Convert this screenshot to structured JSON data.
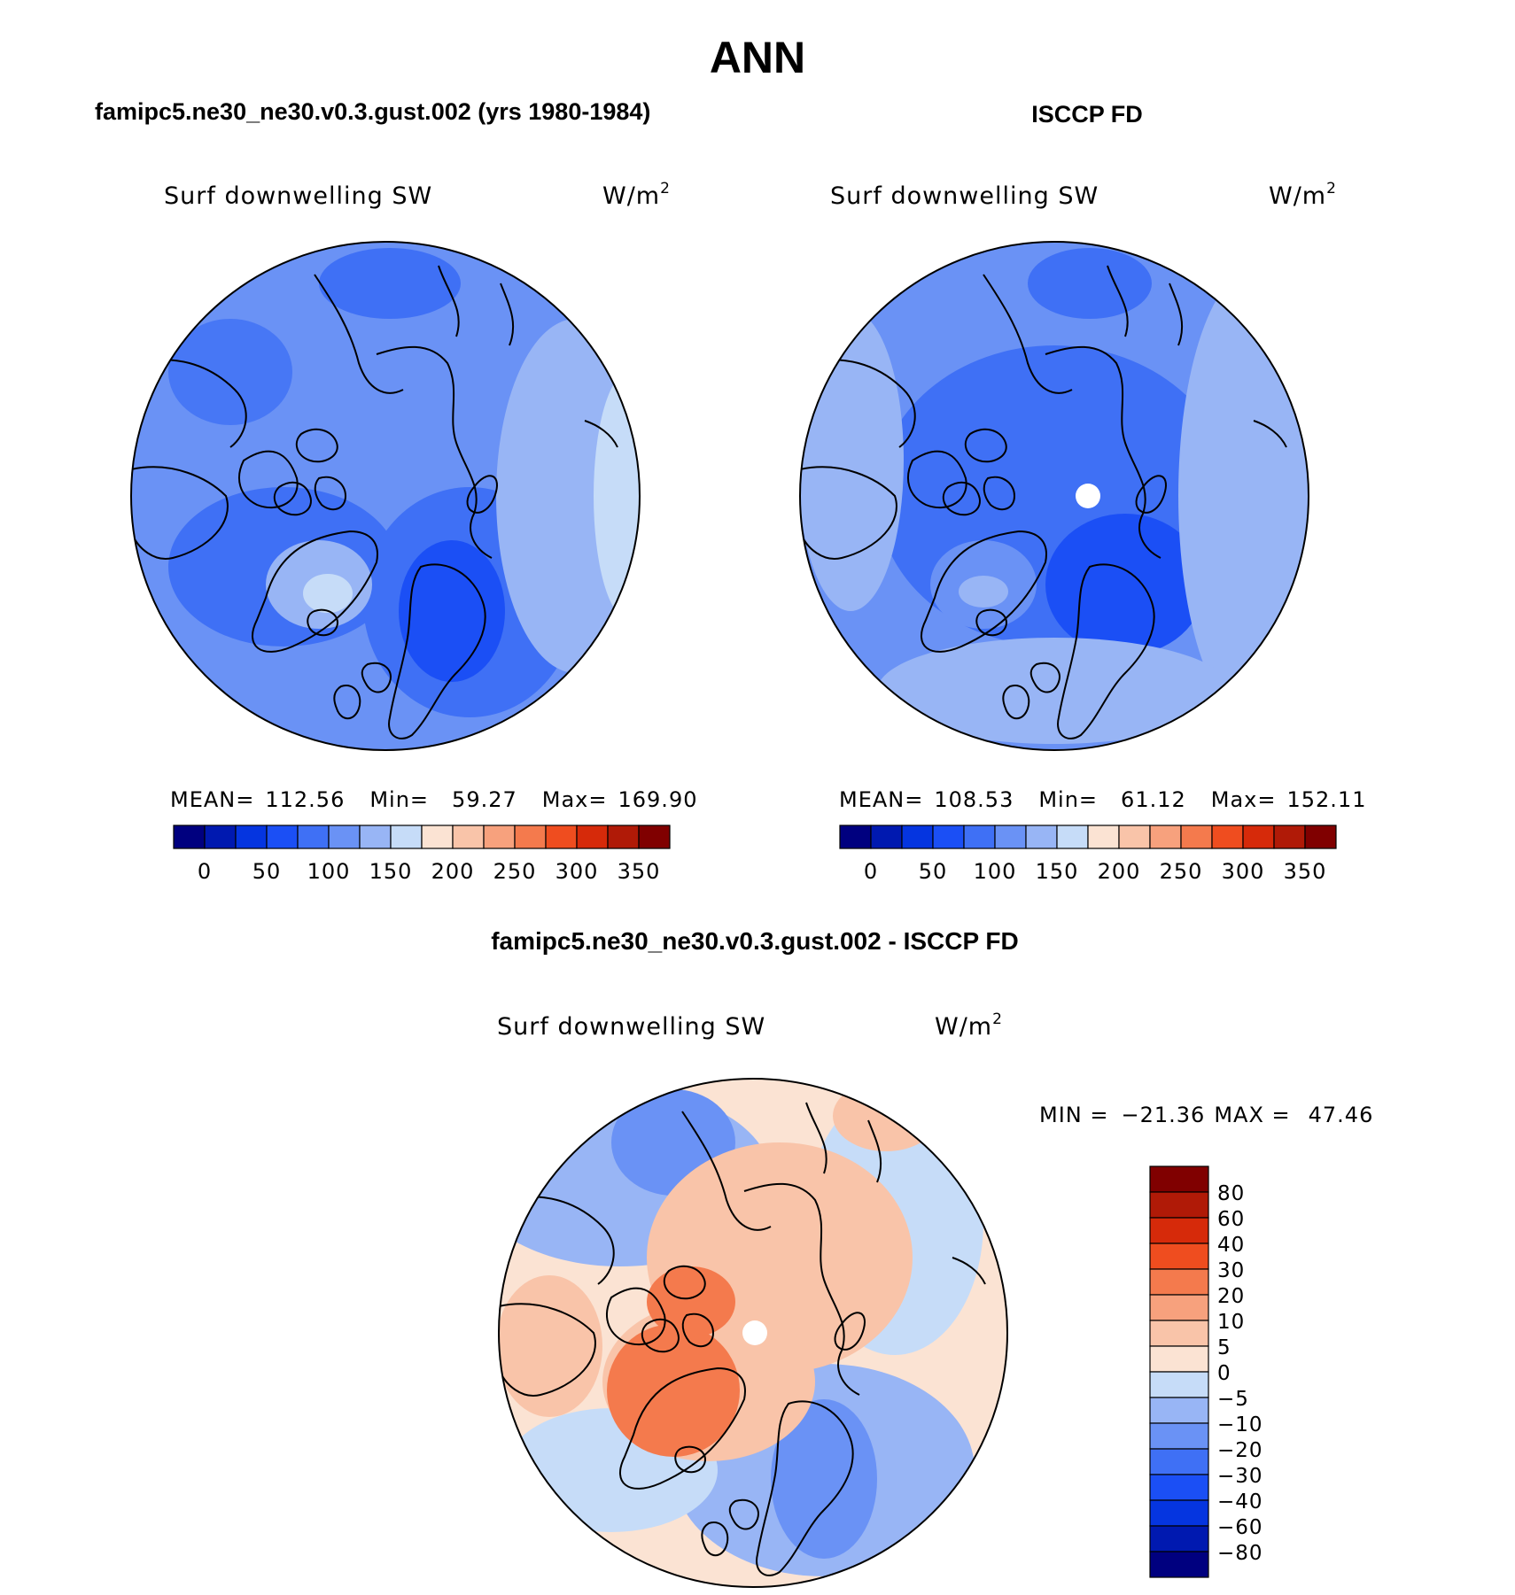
{
  "title": "ANN",
  "colors": {
    "abs_palette": [
      "#00007f",
      "#0019b0",
      "#0535e0",
      "#1b4ff5",
      "#3f70f5",
      "#6a92f5",
      "#98b5f5",
      "#c6dcf8",
      "#fbe3d3",
      "#f9c4a9",
      "#f7a17d",
      "#f47a4d",
      "#ef4d1f",
      "#d62a0a",
      "#b01a07",
      "#800000"
    ],
    "diff_palette": [
      "#00007f",
      "#0019b0",
      "#0535e0",
      "#1b4ff5",
      "#3f70f5",
      "#6a92f5",
      "#98b5f5",
      "#c6dcf8",
      "#fbe3d3",
      "#f9c4a9",
      "#f7a17d",
      "#f47a4d",
      "#ef4d1f",
      "#d62a0a",
      "#b01a07",
      "#800000"
    ]
  },
  "panels": [
    {
      "id": "model",
      "heading": "famipc5.ne30_ne30.v0.3.gust.002 (yrs 1980-1984)",
      "variable": "Surf downwelling SW",
      "units": "W/m",
      "units_sup": "2",
      "stats": {
        "mean_label": "MEAN=",
        "mean": "112.56",
        "min_label": "Min=",
        "min": "59.27",
        "max_label": "Max=",
        "max": "169.90"
      },
      "colorbar_ticks": [
        "0",
        "50",
        "100",
        "150",
        "200",
        "250",
        "300",
        "350"
      ]
    },
    {
      "id": "obs",
      "heading": "ISCCP FD",
      "variable": "Surf downwelling SW",
      "units": "W/m",
      "units_sup": "2",
      "stats": {
        "mean_label": "MEAN=",
        "mean": "108.53",
        "min_label": "Min=",
        "min": "61.12",
        "max_label": "Max=",
        "max": "152.11"
      },
      "colorbar_ticks": [
        "0",
        "50",
        "100",
        "150",
        "200",
        "250",
        "300",
        "350"
      ]
    },
    {
      "id": "diff",
      "heading": "famipc5.ne30_ne30.v0.3.gust.002 - ISCCP FD",
      "variable": "Surf downwelling SW",
      "units": "W/m",
      "units_sup": "2",
      "stats": {
        "min_label": "MIN =",
        "min": "−21.36",
        "max_label": "MAX =",
        "max": "47.46"
      },
      "colorbar_ticks": [
        "80",
        "60",
        "40",
        "30",
        "20",
        "10",
        "5",
        "0",
        "−5",
        "−10",
        "−20",
        "−30",
        "−40",
        "−60",
        "−80"
      ]
    }
  ]
}
